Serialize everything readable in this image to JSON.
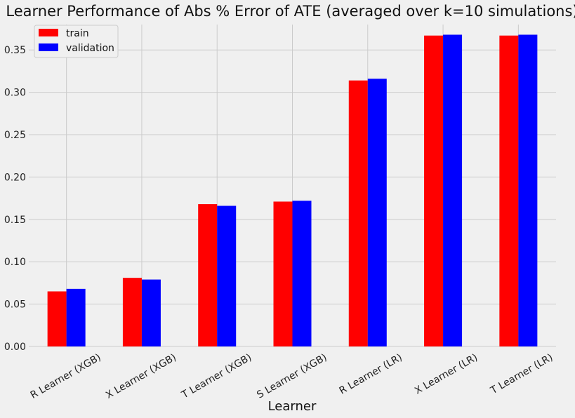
{
  "chart_data": {
    "type": "bar",
    "title": "Learner Performance of Abs % Error of ATE (averaged over k=10 simulations)",
    "xlabel": "Learner",
    "ylabel": "",
    "ylim": [
      0,
      0.38
    ],
    "yticks": [
      "0.00",
      "0.05",
      "0.10",
      "0.15",
      "0.20",
      "0.25",
      "0.30",
      "0.35"
    ],
    "ytick_values": [
      0,
      0.05,
      0.1,
      0.15,
      0.2,
      0.25,
      0.3,
      0.35
    ],
    "categories": [
      "R Learner (XGB)",
      "X Learner (XGB)",
      "T Learner (XGB)",
      "S Learner (XGB)",
      "R Learner (LR)",
      "X Learner (LR)",
      "T Learner (LR)"
    ],
    "series": [
      {
        "name": "train",
        "color": "#ff0000",
        "values": [
          0.065,
          0.081,
          0.168,
          0.171,
          0.314,
          0.367,
          0.367
        ]
      },
      {
        "name": "validation",
        "color": "#0000ff",
        "values": [
          0.068,
          0.079,
          0.166,
          0.172,
          0.316,
          0.368,
          0.368
        ]
      }
    ],
    "grid": true,
    "legend_position": "top-left"
  }
}
